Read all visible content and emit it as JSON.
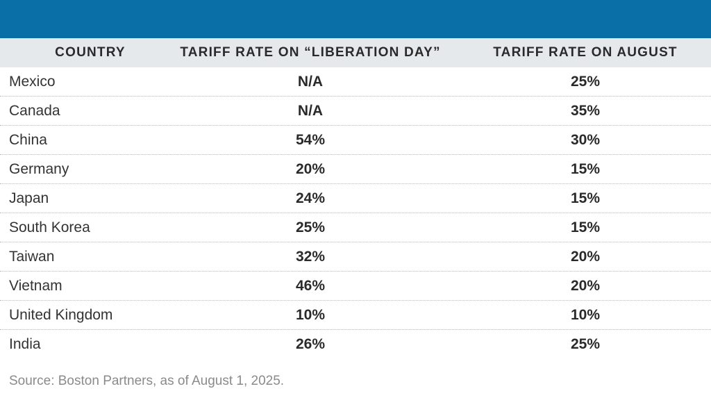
{
  "colors": {
    "top_band": "#0a6ea7",
    "header_bg": "#e6e9ec",
    "text": "#2a2a2a",
    "source_text": "#8a8a8a"
  },
  "chart_data": {
    "type": "table",
    "columns": [
      "COUNTRY",
      "TARIFF RATE ON “LIBERATION DAY”",
      "TARIFF RATE ON AUGUST"
    ],
    "rows": [
      {
        "country": "Mexico",
        "liberation_day": "N/A",
        "august": "25%"
      },
      {
        "country": "Canada",
        "liberation_day": "N/A",
        "august": "35%"
      },
      {
        "country": "China",
        "liberation_day": "54%",
        "august": "30%"
      },
      {
        "country": "Germany",
        "liberation_day": "20%",
        "august": "15%"
      },
      {
        "country": "Japan",
        "liberation_day": "24%",
        "august": "15%"
      },
      {
        "country": "South Korea",
        "liberation_day": "25%",
        "august": "15%"
      },
      {
        "country": "Taiwan",
        "liberation_day": "32%",
        "august": "20%"
      },
      {
        "country": "Vietnam",
        "liberation_day": "46%",
        "august": "20%"
      },
      {
        "country": "United Kingdom",
        "liberation_day": "10%",
        "august": "10%"
      },
      {
        "country": "India",
        "liberation_day": "26%",
        "august": "25%"
      }
    ],
    "source": "Source: Boston Partners, as of August 1, 2025."
  }
}
